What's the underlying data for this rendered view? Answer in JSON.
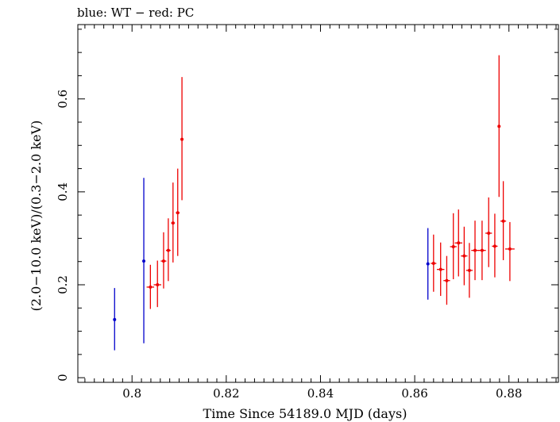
{
  "chart_data": {
    "type": "scatter",
    "title": "blue: WT − red: PC",
    "xlabel": "Time Since 54189.0 MJD (days)",
    "ylabel": "(2.0−10.0 keV)/(0.3−2.0 keV)",
    "xlim": [
      0.7885,
      0.8905
    ],
    "ylim": [
      -0.01,
      0.76
    ],
    "x_ticks": [
      {
        "value": 0.8,
        "label": "0.8"
      },
      {
        "value": 0.82,
        "label": "0.82"
      },
      {
        "value": 0.84,
        "label": "0.84"
      },
      {
        "value": 0.86,
        "label": "0.86"
      },
      {
        "value": 0.88,
        "label": "0.88"
      }
    ],
    "y_ticks": [
      {
        "value": 0,
        "label": "0"
      },
      {
        "value": 0.2,
        "label": "0.2"
      },
      {
        "value": 0.4,
        "label": "0.4"
      },
      {
        "value": 0.6,
        "label": "0.6"
      }
    ],
    "grid": false,
    "series": [
      {
        "name": "WT",
        "color": "#0000cc",
        "points": [
          {
            "x": 0.7963,
            "xerr": 0.0002,
            "y": 0.125,
            "ylo": 0.059,
            "yhi": 0.193
          },
          {
            "x": 0.8025,
            "xerr": 0.0002,
            "y": 0.251,
            "ylo": 0.074,
            "yhi": 0.43
          },
          {
            "x": 0.8628,
            "xerr": 0.0002,
            "y": 0.245,
            "ylo": 0.168,
            "yhi": 0.322
          }
        ]
      },
      {
        "name": "PC",
        "color": "#ee0000",
        "points": [
          {
            "x": 0.8039,
            "xerr": 0.0008,
            "y": 0.195,
            "ylo": 0.148,
            "yhi": 0.243
          },
          {
            "x": 0.8054,
            "xerr": 0.0008,
            "y": 0.2,
            "ylo": 0.152,
            "yhi": 0.252
          },
          {
            "x": 0.8067,
            "xerr": 0.0006,
            "y": 0.251,
            "ylo": 0.192,
            "yhi": 0.313
          },
          {
            "x": 0.8077,
            "xerr": 0.0005,
            "y": 0.274,
            "ylo": 0.208,
            "yhi": 0.343
          },
          {
            "x": 0.8087,
            "xerr": 0.0004,
            "y": 0.333,
            "ylo": 0.248,
            "yhi": 0.42
          },
          {
            "x": 0.8097,
            "xerr": 0.0004,
            "y": 0.355,
            "ylo": 0.262,
            "yhi": 0.45
          },
          {
            "x": 0.8106,
            "xerr": 0.0002,
            "y": 0.513,
            "ylo": 0.382,
            "yhi": 0.647
          },
          {
            "x": 0.864,
            "xerr": 0.0006,
            "y": 0.246,
            "ylo": 0.185,
            "yhi": 0.308
          },
          {
            "x": 0.8655,
            "xerr": 0.0008,
            "y": 0.233,
            "ylo": 0.176,
            "yhi": 0.291
          },
          {
            "x": 0.8668,
            "xerr": 0.0007,
            "y": 0.209,
            "ylo": 0.157,
            "yhi": 0.262
          },
          {
            "x": 0.8682,
            "xerr": 0.0007,
            "y": 0.282,
            "ylo": 0.212,
            "yhi": 0.354
          },
          {
            "x": 0.8693,
            "xerr": 0.0008,
            "y": 0.29,
            "ylo": 0.218,
            "yhi": 0.362
          },
          {
            "x": 0.8705,
            "xerr": 0.0007,
            "y": 0.262,
            "ylo": 0.199,
            "yhi": 0.325
          },
          {
            "x": 0.8716,
            "xerr": 0.0007,
            "y": 0.231,
            "ylo": 0.172,
            "yhi": 0.29
          },
          {
            "x": 0.8728,
            "xerr": 0.0008,
            "y": 0.274,
            "ylo": 0.21,
            "yhi": 0.338
          },
          {
            "x": 0.8743,
            "xerr": 0.0008,
            "y": 0.274,
            "ylo": 0.21,
            "yhi": 0.338
          },
          {
            "x": 0.8757,
            "xerr": 0.0007,
            "y": 0.311,
            "ylo": 0.238,
            "yhi": 0.388
          },
          {
            "x": 0.877,
            "xerr": 0.0006,
            "y": 0.283,
            "ylo": 0.216,
            "yhi": 0.353
          },
          {
            "x": 0.8779,
            "xerr": 0.0003,
            "y": 0.541,
            "ylo": 0.389,
            "yhi": 0.694
          },
          {
            "x": 0.8788,
            "xerr": 0.0006,
            "y": 0.337,
            "ylo": 0.253,
            "yhi": 0.423
          },
          {
            "x": 0.8802,
            "xerr": 0.001,
            "y": 0.277,
            "ylo": 0.208,
            "yhi": 0.335
          }
        ]
      }
    ]
  }
}
